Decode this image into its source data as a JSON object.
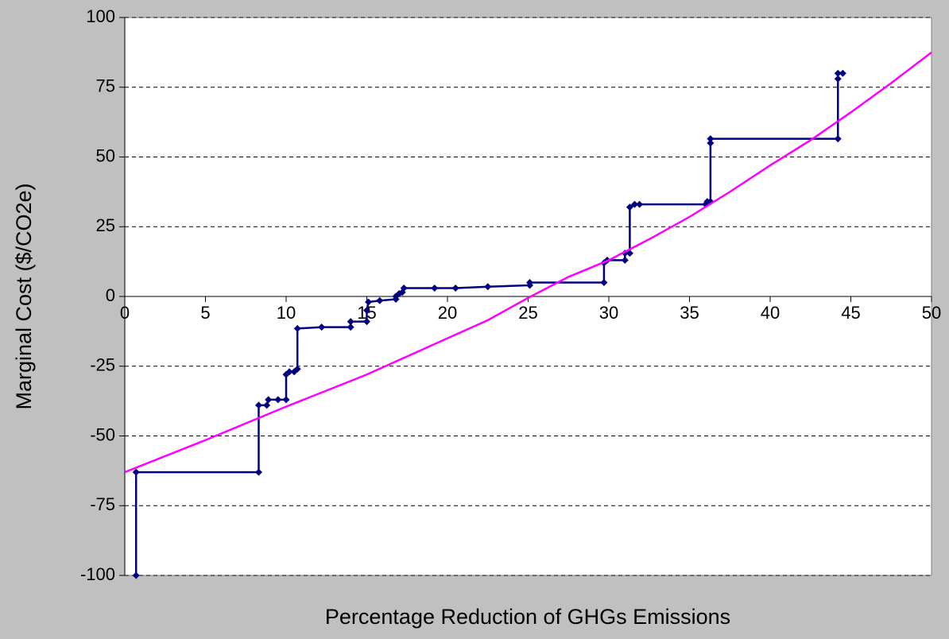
{
  "chart_data": {
    "type": "line",
    "x_label": "Percentage Reduction of GHGs Emissions",
    "y_label": "Marginal Cost ($/CO2e)",
    "xlim": [
      0,
      50
    ],
    "xticks": [
      0,
      5,
      10,
      15,
      20,
      25,
      30,
      35,
      40,
      45,
      50
    ],
    "ylim": [
      -100,
      100
    ],
    "yticks": [
      -100,
      -75,
      -50,
      -25,
      0,
      25,
      50,
      75,
      100
    ],
    "grid": true,
    "series": [
      {
        "color": "#000080",
        "markers": true,
        "x": [
          0.7,
          0.7,
          8.3,
          8.3,
          8.8,
          8.9,
          9.5,
          10.0,
          10.0,
          10.2,
          10.5,
          10.7,
          10.7,
          12.2,
          14.0,
          14.0,
          15.0,
          15.0,
          15.1,
          15.8,
          16.8,
          16.8,
          17.0,
          17.2,
          17.3,
          19.2,
          20.5,
          22.5,
          25.1,
          25.1,
          29.7,
          29.7,
          29.9,
          31.0,
          31.0,
          31.3,
          31.3,
          31.6,
          31.9,
          36.0,
          36.1,
          36.3,
          36.3,
          36.3,
          44.2,
          44.2,
          44.2,
          44.5
        ],
        "values": [
          -100,
          -63,
          -63,
          -39,
          -39,
          -37,
          -37,
          -37,
          -28,
          -27,
          -27,
          -26,
          -11.5,
          -11,
          -11,
          -9,
          -9,
          -5,
          -2,
          -1.5,
          -1,
          0,
          1,
          1.5,
          3,
          3,
          3,
          3.5,
          4,
          5,
          5,
          12,
          13,
          13,
          15.5,
          15.5,
          32,
          33,
          33,
          33,
          34,
          34,
          55,
          56.5,
          56.5,
          78,
          80,
          80
        ]
      },
      {
        "color": "#ff00ff",
        "markers": false,
        "x": [
          0,
          5,
          10,
          15,
          20,
          22.5,
          25,
          27.5,
          30,
          32.5,
          35,
          37.5,
          40,
          42.5,
          45,
          47.5,
          50
        ],
        "values": [
          -63,
          -51.5,
          -39.5,
          -28,
          -15,
          -8.5,
          -0.5,
          7,
          13,
          20.5,
          28.5,
          37.5,
          47,
          56,
          66,
          76.5,
          87.5
        ]
      }
    ]
  }
}
